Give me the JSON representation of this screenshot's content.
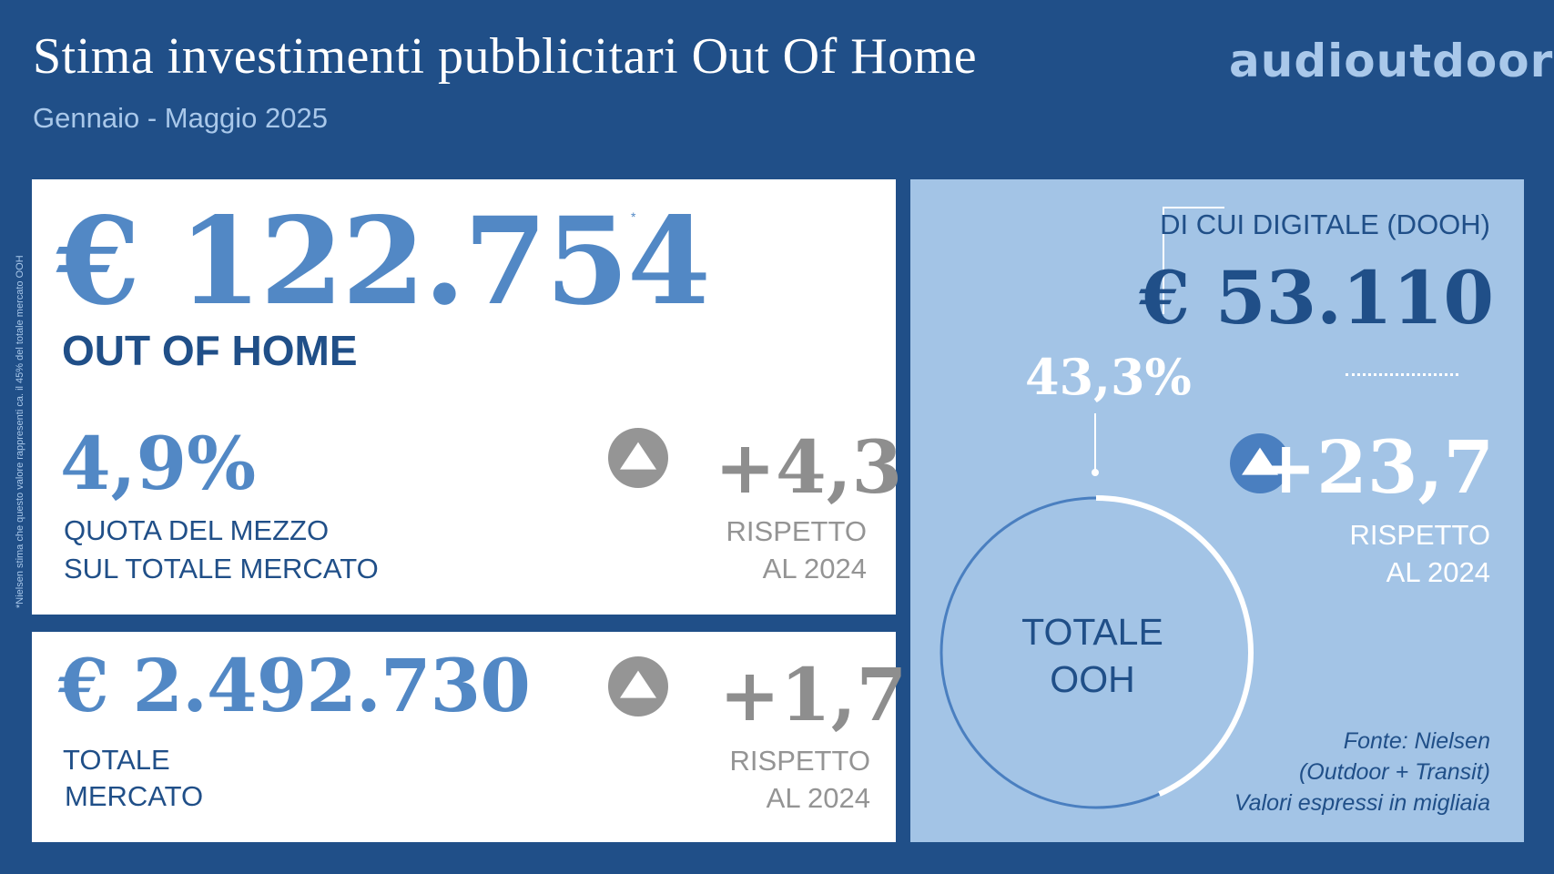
{
  "header": {
    "title": "Stima investimenti pubblicitari Out Of Home",
    "subtitle": "Gennaio - Maggio 2025",
    "logo": "audioutdoor"
  },
  "footnote": "*Nielsen stima che questo valore rappresenti ca. il 45% del totale mercato OOH",
  "ooh": {
    "amount": "€ 122.754",
    "asterisk": "*",
    "label": "OUT OF HOME",
    "share_value": "4,9%",
    "share_label_line1": "QUOTA DEL MEZZO",
    "share_label_line2": "SUL TOTALE MERCATO",
    "delta": "+4,3",
    "compare_line1": "RISPETTO",
    "compare_line2": "AL 2024",
    "trend_icon": "triangle-up-icon"
  },
  "total_market": {
    "amount": "€ 2.492.730",
    "label_line1": "TOTALE",
    "label_line2": "MERCATO",
    "delta": "+1,7",
    "compare_line1": "RISPETTO",
    "compare_line2": "AL 2024",
    "trend_icon": "triangle-up-icon"
  },
  "dooh": {
    "label": "DI CUI DIGITALE (DOOH)",
    "amount": "€ 53.110",
    "percent_label": "43,3%",
    "percent_value": 43.3,
    "delta": "+23,7",
    "compare_line1": "RISPETTO",
    "compare_line2": "AL 2024",
    "trend_icon": "triangle-up-icon"
  },
  "donut": {
    "center_line1": "TOTALE",
    "center_line2": "OOH"
  },
  "source": {
    "line1": "Fonte: Nielsen",
    "line2": "(Outdoor + Transit)",
    "line3": "Valori espressi in migliaia"
  },
  "colors": {
    "background": "#204f88",
    "accent": "#5288c5",
    "light_panel": "#a3c4e6",
    "gray": "#8e8e8e"
  }
}
